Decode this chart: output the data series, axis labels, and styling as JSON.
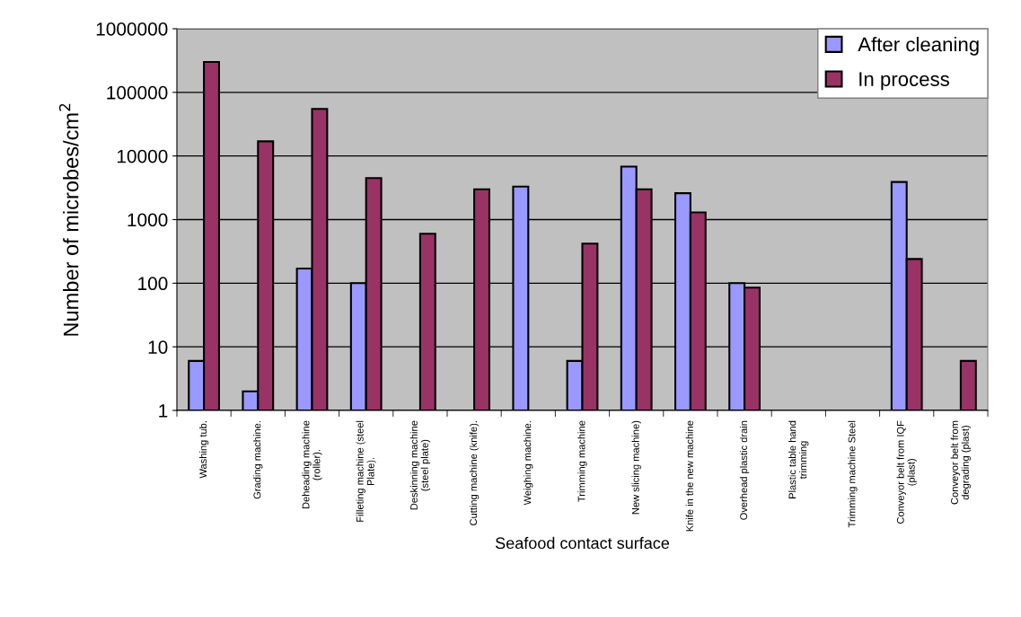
{
  "chart_data": {
    "type": "bar",
    "xlabel": "Seafood contact surface",
    "ylabel": "Number of microbes/cm$^{2}$",
    "categories": [
      "Washing tub.",
      "Grading machine.",
      "Deheading machine\n(roller).",
      "Filleting machine (steel\nPlate).",
      "Deskinning machine\n(steel plate)",
      "Cutting machine (knife).",
      "Weighing machine.",
      "Trimming machine",
      "New slicing machine)",
      "Knife in the new machine",
      "Overhead plastic drain",
      "Plastic table hand\ntrimming",
      "Trimming machine Steel",
      "Conveyor belt from IQF\n(plast)",
      "Conveyor belt from\ndegrading (plast)"
    ],
    "series": [
      {
        "name": "After cleaning",
        "color": "#9999ff",
        "values": [
          6,
          2,
          170,
          100,
          null,
          null,
          3300,
          6,
          6800,
          2600,
          100,
          null,
          null,
          3900,
          null
        ]
      },
      {
        "name": "In process",
        "color": "#993366",
        "values": [
          300000,
          17000,
          55000,
          4500,
          600,
          3000,
          null,
          420,
          3000,
          1300,
          85,
          null,
          null,
          240,
          6
        ]
      }
    ],
    "log": true,
    "ylim": [
      1,
      1000000
    ],
    "yticks": [
      1,
      10,
      100,
      1000,
      10000,
      100000,
      1000000
    ],
    "grid": "y",
    "legend": "top right"
  }
}
